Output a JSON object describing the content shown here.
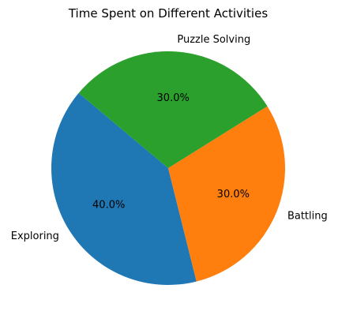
{
  "chart_data": {
    "type": "pie",
    "title": "Time Spent on Different Activities",
    "categories": [
      "Exploring",
      "Battling",
      "Puzzle Solving"
    ],
    "values": [
      40.0,
      30.0,
      30.0
    ],
    "percent_labels": [
      "40.0%",
      "30.0%",
      "30.0%"
    ],
    "colors": [
      "#1f77b4",
      "#ff7f0e",
      "#2ca02c"
    ],
    "start_angle_deg": 140,
    "direction": "counterclockwise",
    "legend": "none"
  }
}
